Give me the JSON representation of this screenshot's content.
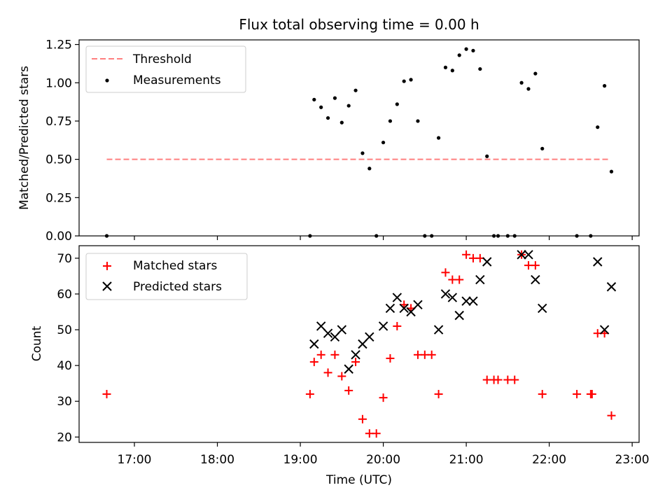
{
  "title": "Flux total observing time = 0.00 h",
  "chart_data": [
    {
      "type": "scatter",
      "panel": "top",
      "ylabel": "Matched/Predicted stars",
      "ylim": [
        0,
        1.28
      ],
      "yticks": [
        0.0,
        0.25,
        0.5,
        0.75,
        1.0,
        1.25
      ],
      "ytick_labels": [
        "0.00",
        "0.25",
        "0.50",
        "0.75",
        "1.00",
        "1.25"
      ],
      "legend": {
        "placement": "upper-left",
        "entries": [
          "Threshold",
          "Measurements"
        ]
      },
      "threshold": {
        "name": "Threshold",
        "y": 0.5,
        "x_start": "16:40",
        "x_end": "22:44",
        "color": "#ff7f7f"
      },
      "series": [
        {
          "name": "Measurements",
          "marker": "dot",
          "color": "#000000",
          "points": [
            [
              "16:40",
              0.0
            ],
            [
              "19:07",
              0.0
            ],
            [
              "19:10",
              0.89
            ],
            [
              "19:15",
              0.84
            ],
            [
              "19:20",
              0.77
            ],
            [
              "19:25",
              0.9
            ],
            [
              "19:30",
              0.74
            ],
            [
              "19:35",
              0.85
            ],
            [
              "19:40",
              0.95
            ],
            [
              "19:45",
              0.54
            ],
            [
              "19:50",
              0.44
            ],
            [
              "19:55",
              0.0
            ],
            [
              "20:00",
              0.61
            ],
            [
              "20:05",
              0.75
            ],
            [
              "20:10",
              0.86
            ],
            [
              "20:15",
              1.01
            ],
            [
              "20:20",
              1.02
            ],
            [
              "20:25",
              0.75
            ],
            [
              "20:30",
              0.0
            ],
            [
              "20:35",
              0.0
            ],
            [
              "20:40",
              0.64
            ],
            [
              "20:45",
              1.1
            ],
            [
              "20:50",
              1.08
            ],
            [
              "20:55",
              1.18
            ],
            [
              "21:00",
              1.22
            ],
            [
              "21:05",
              1.21
            ],
            [
              "21:10",
              1.09
            ],
            [
              "21:15",
              0.52
            ],
            [
              "21:20",
              0.0
            ],
            [
              "21:23",
              0.0
            ],
            [
              "21:30",
              0.0
            ],
            [
              "21:35",
              0.0
            ],
            [
              "21:40",
              1.0
            ],
            [
              "21:45",
              0.96
            ],
            [
              "21:50",
              1.06
            ],
            [
              "21:55",
              0.57
            ],
            [
              "22:20",
              0.0
            ],
            [
              "22:30",
              0.0
            ],
            [
              "22:35",
              0.71
            ],
            [
              "22:40",
              0.98
            ],
            [
              "22:45",
              0.42
            ]
          ]
        }
      ]
    },
    {
      "type": "scatter",
      "panel": "bottom",
      "xlabel": "Time (UTC)",
      "ylabel": "Count",
      "ylim": [
        18.5,
        73.5
      ],
      "yticks": [
        20,
        30,
        40,
        50,
        60,
        70
      ],
      "ytick_labels": [
        "20",
        "30",
        "40",
        "50",
        "60",
        "70"
      ],
      "xlim": [
        "16:20",
        "23:05"
      ],
      "xticks": [
        "17:00",
        "18:00",
        "19:00",
        "20:00",
        "21:00",
        "22:00",
        "23:00"
      ],
      "xtick_labels": [
        "17:00",
        "18:00",
        "19:00",
        "20:00",
        "21:00",
        "22:00",
        "23:00"
      ],
      "legend": {
        "placement": "upper-left",
        "entries": [
          "Matched stars",
          "Predicted stars"
        ]
      },
      "series": [
        {
          "name": "Matched stars",
          "marker": "plus",
          "color": "#ff0000",
          "points": [
            [
              "16:40",
              32
            ],
            [
              "19:07",
              32
            ],
            [
              "19:10",
              41
            ],
            [
              "19:15",
              43
            ],
            [
              "19:20",
              38
            ],
            [
              "19:25",
              43
            ],
            [
              "19:30",
              37
            ],
            [
              "19:35",
              33
            ],
            [
              "19:40",
              41
            ],
            [
              "19:45",
              25
            ],
            [
              "19:50",
              21
            ],
            [
              "19:55",
              21
            ],
            [
              "20:00",
              31
            ],
            [
              "20:05",
              42
            ],
            [
              "20:10",
              51
            ],
            [
              "20:15",
              57
            ],
            [
              "20:20",
              56
            ],
            [
              "20:25",
              43
            ],
            [
              "20:30",
              43
            ],
            [
              "20:35",
              43
            ],
            [
              "20:40",
              32
            ],
            [
              "20:45",
              66
            ],
            [
              "20:50",
              64
            ],
            [
              "20:55",
              64
            ],
            [
              "21:00",
              71
            ],
            [
              "21:05",
              70
            ],
            [
              "21:10",
              70
            ],
            [
              "21:15",
              36
            ],
            [
              "21:20",
              36
            ],
            [
              "21:23",
              36
            ],
            [
              "21:30",
              36
            ],
            [
              "21:35",
              36
            ],
            [
              "21:40",
              71
            ],
            [
              "21:45",
              68
            ],
            [
              "21:50",
              68
            ],
            [
              "21:55",
              32
            ],
            [
              "22:20",
              32
            ],
            [
              "22:30",
              32
            ],
            [
              "22:31",
              32
            ],
            [
              "22:35",
              49
            ],
            [
              "22:40",
              49
            ],
            [
              "22:45",
              26
            ]
          ]
        },
        {
          "name": "Predicted stars",
          "marker": "x",
          "color": "#000000",
          "points": [
            [
              "19:10",
              46
            ],
            [
              "19:15",
              51
            ],
            [
              "19:20",
              49
            ],
            [
              "19:25",
              48
            ],
            [
              "19:30",
              50
            ],
            [
              "19:35",
              39
            ],
            [
              "19:40",
              43
            ],
            [
              "19:45",
              46
            ],
            [
              "19:50",
              48
            ],
            [
              "20:00",
              51
            ],
            [
              "20:05",
              56
            ],
            [
              "20:10",
              59
            ],
            [
              "20:15",
              56
            ],
            [
              "20:20",
              55
            ],
            [
              "20:25",
              57
            ],
            [
              "20:40",
              50
            ],
            [
              "20:45",
              60
            ],
            [
              "20:50",
              59
            ],
            [
              "20:55",
              54
            ],
            [
              "21:00",
              58
            ],
            [
              "21:05",
              58
            ],
            [
              "21:10",
              64
            ],
            [
              "21:15",
              69
            ],
            [
              "21:40",
              71
            ],
            [
              "21:45",
              71
            ],
            [
              "21:50",
              64
            ],
            [
              "21:55",
              56
            ],
            [
              "22:35",
              69
            ],
            [
              "22:40",
              50
            ],
            [
              "22:45",
              62
            ]
          ]
        }
      ]
    }
  ]
}
